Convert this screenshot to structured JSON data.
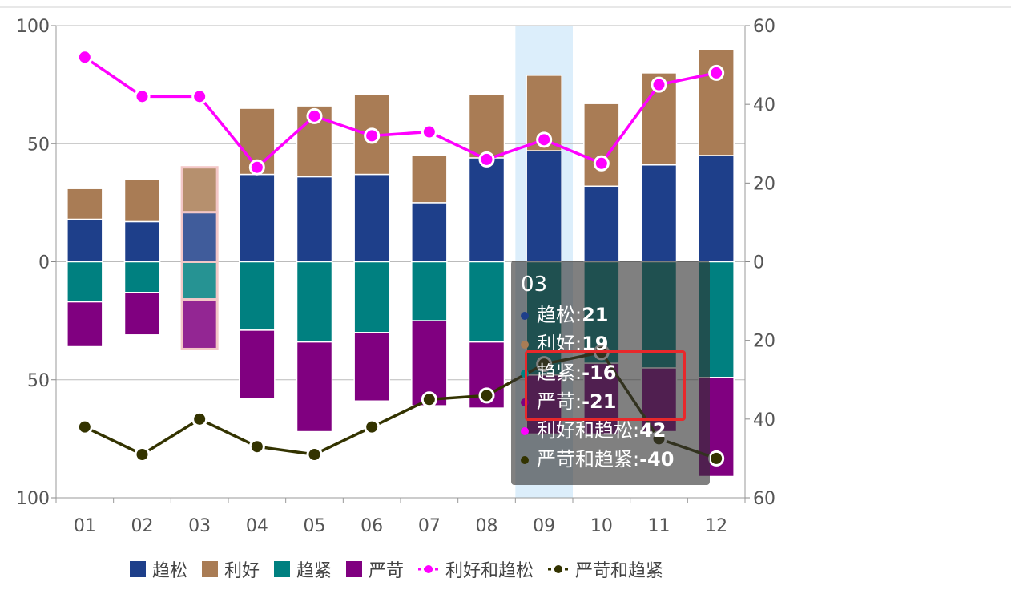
{
  "chart_data": {
    "type": "bar",
    "categories": [
      "01",
      "02",
      "03",
      "04",
      "05",
      "06",
      "07",
      "08",
      "09",
      "10",
      "11",
      "12"
    ],
    "series": [
      {
        "name": "趋松",
        "kind": "bar",
        "axis": "left",
        "values": [
          18,
          17,
          21,
          37,
          36,
          37,
          25,
          44,
          47,
          32,
          41,
          45
        ]
      },
      {
        "name": "利好",
        "kind": "bar",
        "axis": "left",
        "values": [
          13,
          18,
          19,
          28,
          30,
          34,
          20,
          27,
          32,
          35,
          39,
          45
        ]
      },
      {
        "name": "趋紧",
        "kind": "bar",
        "axis": "left",
        "values": [
          -17,
          -13,
          -16,
          -29,
          -34,
          -30,
          -25,
          -34,
          -48,
          -43,
          -45,
          -49
        ]
      },
      {
        "name": "严苛",
        "kind": "bar",
        "axis": "left",
        "values": [
          -19,
          -18,
          -21,
          -29,
          -38,
          -29,
          -36,
          -28,
          -25,
          -30,
          -27,
          -42
        ]
      },
      {
        "name": "利好和趋松",
        "kind": "line",
        "axis": "right",
        "values": [
          52,
          42,
          42,
          24,
          37,
          32,
          33,
          26,
          31,
          25,
          45,
          48
        ]
      },
      {
        "name": "严苛和趋紧",
        "kind": "line",
        "axis": "right",
        "values": [
          -42,
          -49,
          -40,
          -47,
          -49,
          -42,
          -35,
          -34,
          -26,
          -23,
          -45,
          -50
        ]
      }
    ],
    "left_axis": {
      "min": -100,
      "max": 100,
      "ticks": [
        100,
        50,
        0,
        -50,
        -100
      ],
      "tick_labels": [
        "100",
        "50",
        "0",
        "50",
        "100"
      ]
    },
    "right_axis": {
      "min": -60,
      "max": 60,
      "ticks": [
        60,
        40,
        20,
        0,
        -20,
        -40,
        -60
      ],
      "tick_labels": [
        "60",
        "40",
        "20",
        "0",
        "20",
        "40",
        "60"
      ]
    },
    "highlighted_category": "09",
    "emphasized_category": "03",
    "legend_position": "bottom",
    "grid": true
  },
  "colors": {
    "趋松": "#1e3f8a",
    "利好": "#a97c55",
    "趋紧": "#008080",
    "严苛": "#800080",
    "利好和趋松": "#ff00ff",
    "严苛和趋紧": "#333300",
    "highlight_band": "#dceefb",
    "tooltip_box": "#e8282b"
  },
  "tooltip": {
    "title": "03",
    "rows": [
      {
        "label": "趋松",
        "value": "21",
        "color": "#1e3f8a"
      },
      {
        "label": "利好",
        "value": "19",
        "color": "#a97c55"
      },
      {
        "label": "趋紧",
        "value": "-16",
        "color": "#008080"
      },
      {
        "label": "严苛",
        "value": "-21",
        "color": "#800080"
      },
      {
        "label": "利好和趋松",
        "value": "42",
        "color": "#ff00ff"
      },
      {
        "label": "严苛和趋紧",
        "value": "-40",
        "color": "#333300"
      }
    ]
  },
  "legend": [
    {
      "label": "趋松",
      "type": "bar",
      "color": "#1e3f8a",
      "icon": "square-swatch"
    },
    {
      "label": "利好",
      "type": "bar",
      "color": "#a97c55",
      "icon": "square-swatch"
    },
    {
      "label": "趋紧",
      "type": "bar",
      "color": "#008080",
      "icon": "square-swatch"
    },
    {
      "label": "严苛",
      "type": "bar",
      "color": "#800080",
      "icon": "square-swatch"
    },
    {
      "label": "利好和趋松",
      "type": "line",
      "color": "#ff00ff",
      "icon": "line-dot-swatch"
    },
    {
      "label": "严苛和趋紧",
      "type": "line",
      "color": "#333300",
      "icon": "line-dot-swatch"
    }
  ]
}
